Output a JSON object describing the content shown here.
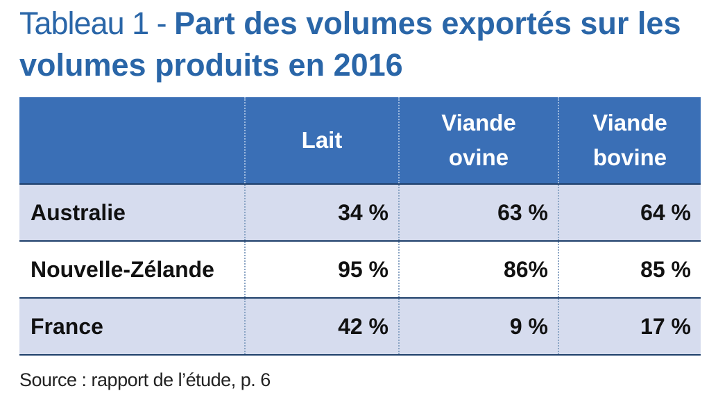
{
  "title": {
    "prefix": "Tableau 1 - ",
    "main": "Part des volumes exportés sur les volumes produits en 2016"
  },
  "table": {
    "headers": [
      "",
      "Lait",
      "Viande ovine",
      "Viande bovine"
    ],
    "header_lines": [
      [
        ""
      ],
      [
        "Lait"
      ],
      [
        "Viande",
        "ovine"
      ],
      [
        "Viande",
        "bovine"
      ]
    ],
    "rows": [
      {
        "label": "Australie",
        "cells": [
          "34 %",
          "63 %",
          "64 %"
        ]
      },
      {
        "label": "Nouvelle-Zélande",
        "cells": [
          "95 %",
          "86%",
          "85 %"
        ]
      },
      {
        "label": "France",
        "cells": [
          "42 %",
          "9 %",
          "17 %"
        ]
      }
    ]
  },
  "source": "Source : rapport de l’étude, p. 6",
  "colors": {
    "title": "#2a66a8",
    "header_bg": "#3a6fb6",
    "row_shade": "#d6dcee",
    "rule": "#1e3f6a"
  }
}
